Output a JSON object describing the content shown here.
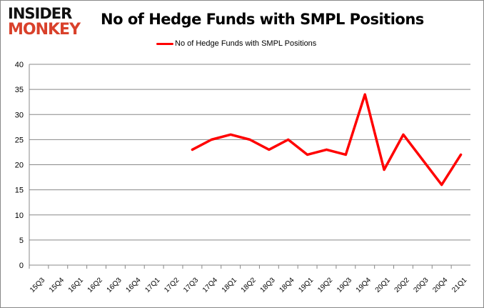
{
  "logo": {
    "line1": "INSIDER",
    "line2": "MONKEY"
  },
  "chart_data": {
    "type": "line",
    "title": "No of Hedge Funds with SMPL Positions",
    "xlabel": "",
    "ylabel": "",
    "categories": [
      "15Q3",
      "15Q4",
      "16Q1",
      "16Q2",
      "16Q3",
      "16Q4",
      "17Q1",
      "17Q2",
      "17Q3",
      "17Q4",
      "18Q1",
      "18Q2",
      "18Q3",
      "18Q4",
      "19Q1",
      "19Q2",
      "19Q3",
      "19Q4",
      "20Q1",
      "20Q2",
      "20Q3",
      "20Q4",
      "21Q1"
    ],
    "series": [
      {
        "name": "No of Hedge Funds with SMPL Positions",
        "color": "#ff0000",
        "values": [
          null,
          null,
          null,
          null,
          null,
          null,
          null,
          null,
          23,
          25,
          26,
          25,
          23,
          25,
          22,
          23,
          22,
          34,
          19,
          26,
          21,
          16,
          22
        ]
      }
    ],
    "ylim": [
      0,
      40
    ],
    "yticks": [
      0,
      5,
      10,
      15,
      20,
      25,
      30,
      35,
      40
    ],
    "grid": true,
    "legend_position": "top"
  }
}
